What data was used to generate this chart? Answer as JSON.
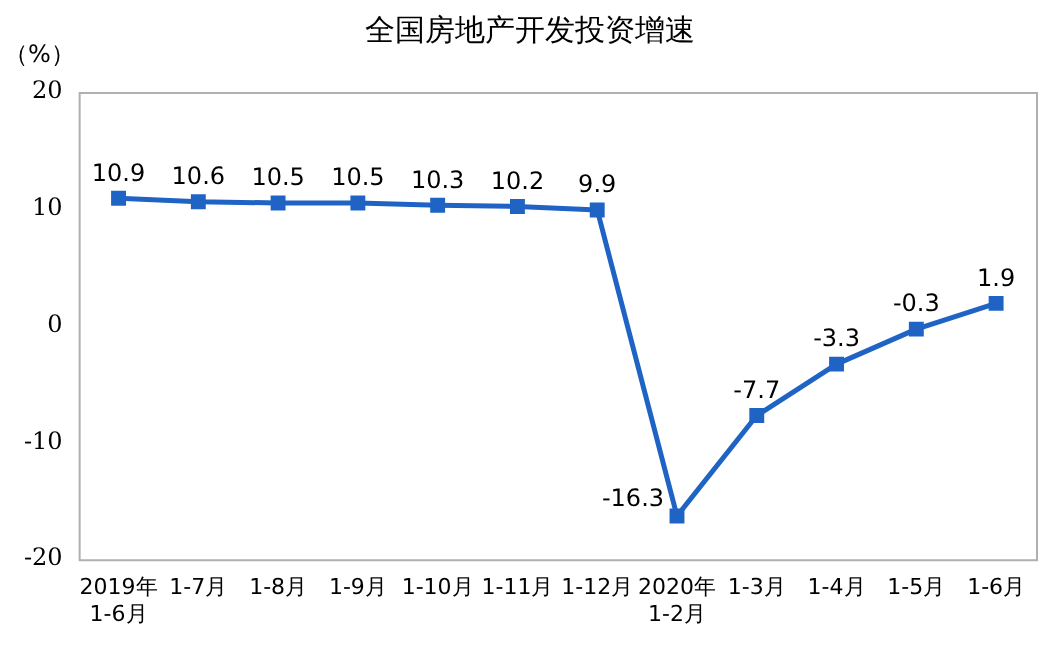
{
  "chart_data": {
    "type": "line",
    "title": "全国房地产开发投资增速",
    "ylabel": "（%）",
    "categories": [
      "2019年\n1-6月",
      "1-7月",
      "1-8月",
      "1-9月",
      "1-10月",
      "1-11月",
      "1-12月",
      "2020年\n1-2月",
      "1-3月",
      "1-4月",
      "1-5月",
      "1-6月"
    ],
    "series": [
      {
        "color": "#1f64c4",
        "values": [
          10.9,
          10.6,
          10.5,
          10.5,
          10.3,
          10.2,
          9.9,
          -16.3,
          -7.7,
          -3.3,
          -0.3,
          1.9
        ]
      }
    ],
    "ylim": [
      -20,
      20
    ],
    "yticks": [
      -20,
      -10,
      0,
      10,
      20
    ],
    "grid": false,
    "legend": false,
    "marker": "square",
    "line_style": "solid",
    "data_labels": true
  }
}
